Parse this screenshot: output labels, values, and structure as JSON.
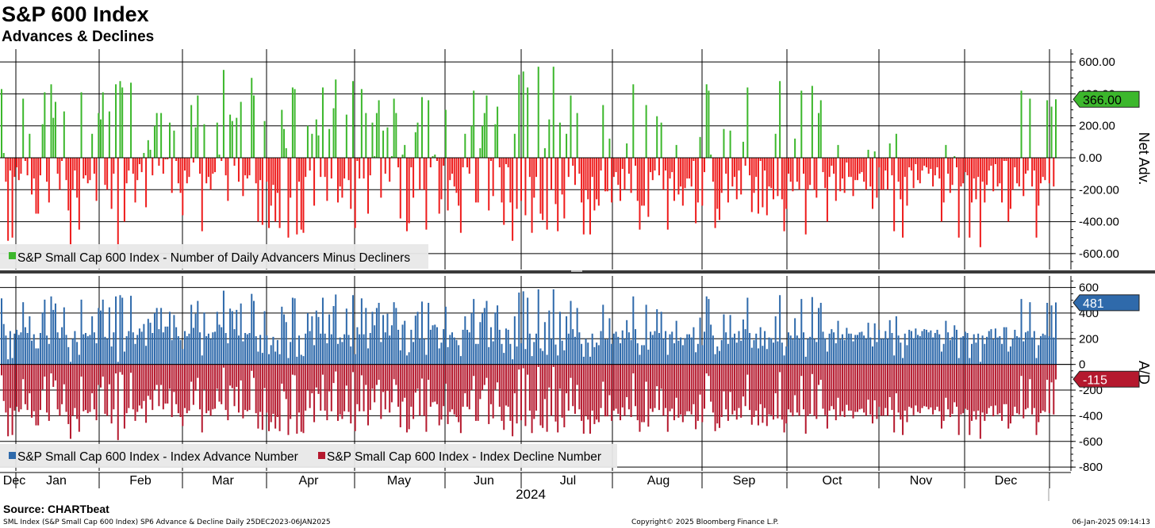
{
  "title": "S&P 600 Index",
  "subtitle": "Advances & Declines",
  "source": "Source: CHARTbeat",
  "footer": {
    "left": "SML Index (S&P Small Cap 600 Index) SP6 Advance & Decline  Daily 25DEC2023-06JAN2025",
    "middle": "Copyright© 2025 Bloomberg Finance L.P.",
    "right": "06-Jan-2025 09:14:13"
  },
  "colors": {
    "green": "#3cb72c",
    "red": "#ee1c1c",
    "blue": "#2f6aab",
    "darkred": "#b5192e",
    "grid": "#000000"
  },
  "chart_data": [
    {
      "type": "bar",
      "title": "Net Adv.",
      "ylabel": "Net Adv.",
      "ylim": [
        -700,
        680
      ],
      "yticks": [
        "600.00",
        "400.00",
        "200.00",
        "0.00",
        "-200.00",
        "-400.00",
        "-600.00"
      ],
      "ytick_values": [
        600,
        400,
        200,
        0,
        -200,
        -400,
        -600
      ],
      "last_value_label": "366.00",
      "last_value": 366,
      "legend": "S&P Small Cap 600 Index - Number of Daily Advancers Minus Decliners",
      "series": [
        {
          "name": "S&P Small Cap 600 Index - Number of Daily Advancers Minus Decliners",
          "values": [
            430,
            30,
            -150,
            -520,
            -80,
            -500,
            -120,
            -60,
            -140,
            -100,
            370,
            -20,
            -110,
            150,
            -230,
            -130,
            -350,
            -350,
            -110,
            210,
            410,
            -150,
            -280,
            460,
            250,
            350,
            -100,
            -200,
            -20,
            290,
            -140,
            -330,
            -560,
            -200,
            -80,
            -250,
            -450,
            410,
            -130,
            -110,
            -160,
            -140,
            150,
            -100,
            -270,
            280,
            240,
            410,
            -170,
            -200,
            290,
            -320,
            -100,
            460,
            -580,
            480,
            440,
            -400,
            -160,
            -80,
            470,
            -100,
            -280,
            -140,
            -40,
            -90,
            30,
            -310,
            110,
            50,
            -110,
            200,
            280,
            -50,
            280,
            -100,
            -10,
            -10,
            220,
            -220,
            170,
            -20,
            -160,
            -220,
            -360,
            -80,
            -160,
            -120,
            330,
            -30,
            190,
            390,
            -100,
            -460,
            210,
            -160,
            -120,
            -200,
            -100,
            -90,
            220,
            20,
            -20,
            550,
            -110,
            -270,
            270,
            230,
            -50,
            250,
            -150,
            350,
            -240,
            -110,
            -130,
            -110,
            500,
            390,
            -160,
            -400,
            -140,
            -420,
            230,
            -150,
            -440,
            -300,
            -170,
            -400,
            -220,
            -440,
            300,
            180,
            60,
            -500,
            -250,
            440,
            430,
            -480,
            -150,
            -450,
            -470,
            -120,
            200,
            -80,
            150,
            -300,
            240,
            140,
            -120,
            440,
            -120,
            -270,
            180,
            -130,
            310,
            490,
            -280,
            -180,
            -250,
            -130,
            270,
            -140,
            -320,
            480,
            -440,
            -20,
            -130,
            430,
            -130,
            280,
            -350,
            -110,
            220,
            10,
            280,
            360,
            -250,
            170,
            -100,
            190,
            -150,
            10,
            370,
            280,
            -60,
            -380,
            20,
            80,
            -460,
            -410,
            -60,
            -250,
            160,
            220,
            -200,
            380,
            -200,
            -450,
            360,
            -60,
            10,
            20,
            -20,
            -350,
            -260,
            -50,
            300,
            -330,
            -140,
            -100,
            -180,
            -220,
            -300,
            -470,
            -60,
            150,
            -60,
            -100,
            200,
            420,
            -280,
            -280,
            60,
            200,
            280,
            390,
            -330,
            -20,
            -240,
            210,
            320,
            -60,
            -280,
            -420,
            -40,
            -60,
            -280,
            -520,
            150,
            -320,
            520,
            -270,
            540,
            -360,
            440,
            -120,
            -470,
            -250,
            -120,
            570,
            -350,
            -390,
            60,
            -450,
            240,
            -200,
            570,
            -290,
            -460,
            220,
            -230,
            -380,
            150,
            -120,
            390,
            -50,
            -170,
            280,
            -100,
            -280,
            -480,
            -200,
            -260,
            -480,
            -120,
            -330,
            -260,
            -300,
            -80,
            330,
            -210,
            -210,
            120,
            -280,
            -120,
            -90,
            -170,
            -270,
            -70,
            -200,
            90,
            -100,
            -220,
            460,
            -50,
            -270,
            -450,
            -300,
            -300,
            330,
            -370,
            -90,
            -140,
            -80,
            260,
            -110,
            220,
            -200,
            -80,
            -450,
            -130,
            -90,
            -270,
            80,
            -230,
            -180,
            -300,
            -190,
            -130,
            -130,
            -180,
            -20,
            -410,
            -280,
            130,
            -300,
            -90,
            460,
            420,
            20,
            -150,
            -440,
            -320,
            -390,
            -220,
            180,
            -100,
            -280,
            170,
            -180,
            -120,
            -260,
            -80,
            -230,
            100,
            -50,
            440,
            -110,
            -340,
            -220,
            -120,
            -350,
            -20,
            -310,
            -80,
            -360,
            -180,
            -190,
            -260,
            150,
            -240,
            480,
            -260,
            -460,
            -320,
            -100,
            -150,
            -210,
            120,
            -150,
            -200,
            420,
            -100,
            -480,
            -200,
            -170,
            450,
            -200,
            -250,
            280,
            360,
            -90,
            -190,
            -400,
            -120,
            -50,
            -100,
            -270,
            80,
            -210,
            -130,
            -220,
            -30,
            -120,
            -120,
            -240,
            -140,
            -140,
            -100,
            -90,
            -150,
            -200,
            50,
            -180,
            -320,
            40,
            -250,
            -60,
            -200,
            -200,
            -80,
            -200,
            90,
            -110,
            -460,
            150,
            -150,
            -260,
            -500,
            -120,
            -300,
            -60,
            -80,
            -190,
            -40,
            -140,
            -160,
            -80,
            -50,
            -60,
            -100,
            -70,
            -180,
            -110,
            -60,
            -130,
            -400,
            -280,
            80,
            -100,
            -220,
            -170,
            10,
            -60,
            -500,
            -180,
            -160,
            -90,
            -110,
            -500,
            -280,
            -130,
            -260,
            -120,
            -560,
            -150,
            -280,
            -170,
            -80,
            -50,
            -210,
            -40,
            -180,
            -160,
            -280,
            -20,
            -20,
            -400,
            -320,
            -200,
            -60,
            -160,
            -180,
            420,
            -240,
            -100,
            -80,
            370,
            -180,
            -80,
            -500,
            -300,
            -160,
            -120,
            -140,
            360,
            -160,
            320,
            -180,
            366
          ]
        }
      ]
    },
    {
      "type": "bar",
      "title": "A/D",
      "ylabel": "A/D",
      "ylim": [
        -830,
        690
      ],
      "yticks": [
        "600",
        "400",
        "200",
        "0",
        "-200",
        "-400",
        "-600",
        "-800"
      ],
      "ytick_values": [
        600,
        400,
        200,
        0,
        -200,
        -400,
        -600,
        -800
      ],
      "last_advance_label": "481",
      "last_decline_label": "-115",
      "legend_advance": "S&P Small Cap 600 Index - Index Advance Number",
      "legend_decline": "S&P Small Cap 600 Index - Index Decline Number",
      "x_months": [
        "Dec",
        "Jan",
        "Feb",
        "Mar",
        "Apr",
        "May",
        "Jun",
        "Jul",
        "Aug",
        "Sep",
        "Oct",
        "Nov",
        "Dec"
      ],
      "x_year": "2024",
      "series": [
        {
          "name": "S&P Small Cap 600 Index - Index Advance Number",
          "values": "derived"
        },
        {
          "name": "S&P Small Cap 600 Index - Index Decline Number",
          "values": "derived"
        }
      ]
    }
  ]
}
